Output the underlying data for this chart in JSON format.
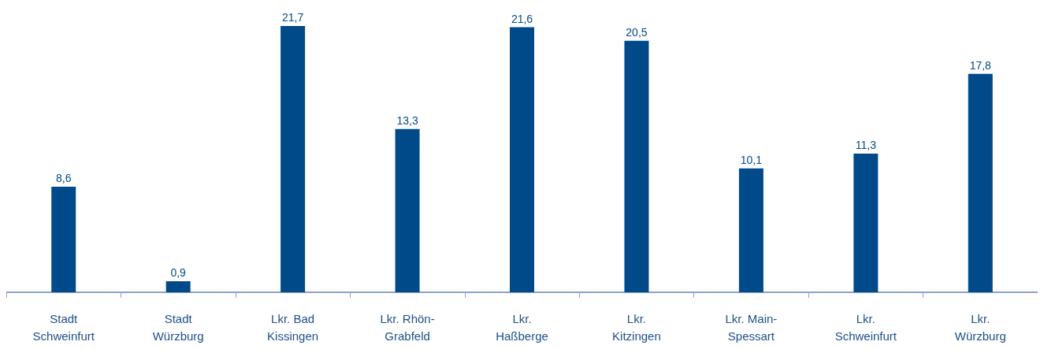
{
  "chart_data": {
    "type": "bar",
    "categories": [
      "Stadt\nSchweinfurt",
      "Stadt\nWürzburg",
      "Lkr. Bad\nKissingen",
      "Lkr. Rhön-\nGrabfeld",
      "Lkr.\nHaßberge",
      "Lkr.\nKitzingen",
      "Lkr. Main-\nSpessart",
      "Lkr.\nSchweinfurt",
      "Lkr.\nWürzburg"
    ],
    "values": [
      8.6,
      0.9,
      21.7,
      13.3,
      21.6,
      20.5,
      10.1,
      11.3,
      17.8
    ],
    "value_labels": [
      "8,6",
      "0,9",
      "21,7",
      "13,3",
      "21,6",
      "20,5",
      "10,1",
      "11,3",
      "17,8"
    ],
    "color": "#004a8a",
    "tick_labels": "x"
  }
}
